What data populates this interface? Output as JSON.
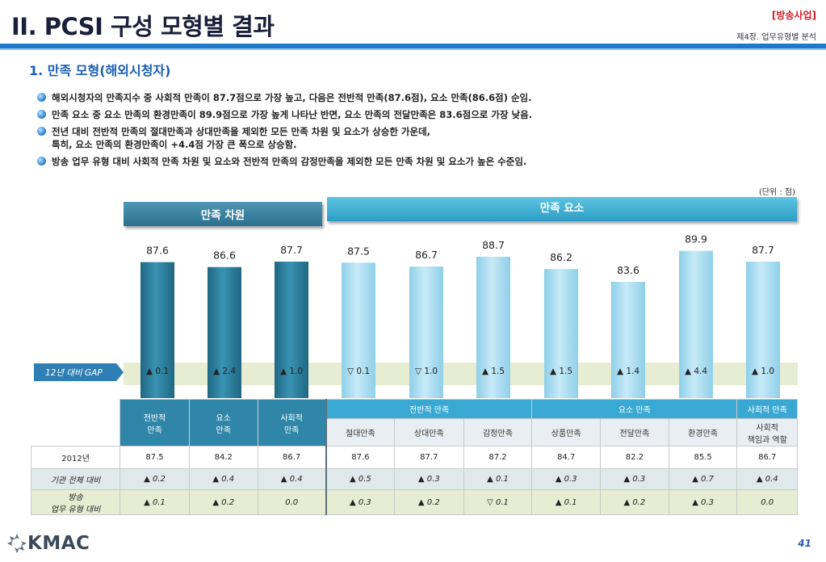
{
  "header": {
    "title": "II. PCSI 구성 모형별 결과",
    "category": "[방송사업]",
    "chapter": "제4장. 업무유형별 분석"
  },
  "section_title": "1. 만족 모형(해외시청자)",
  "bullets": [
    "해외시청자의 만족지수 중 사회적 만족이 87.7점으로 가장 높고, 다음은 전반적 만족(87.6점), 요소 만족(86.6점) 순임.",
    "만족 요소 중 요소 만족의 환경만족이 89.9점으로 가장 높게 나타난 반면, 요소 만족의 전달만족은 83.6점으로 가장 낮음.",
    "전년 대비 전반적 만족의 절대만족과 상대만족을 제외한 모든 만족 차원 및 요소가 상승한 가운데,",
    "특히, 요소 만족의 환경만족이 +4.4점 가장 큰 폭으로 상승함.",
    "방송 업무 유형 대비 사회적 만족 차원 및 요소와 전반적 만족의 감정만족을 제외한 모든 만족 차원 및 요소가 높은 수준임."
  ],
  "unit_note": "(단위 : 점)",
  "banners": {
    "dimension": "만족 차원",
    "element": "만족 요소"
  },
  "chart_data": {
    "type": "bar",
    "categories": [
      "전반적 만족",
      "요소 만족",
      "사회적 만족",
      "절대만족",
      "상대만족",
      "감정만족",
      "상품만족",
      "전달만족",
      "환경만족",
      "사회적 책임과 역할"
    ],
    "values": [
      87.6,
      86.6,
      87.7,
      87.5,
      86.7,
      88.7,
      86.2,
      83.6,
      89.9,
      87.7
    ],
    "value_labels": [
      "87.6",
      "86.6",
      "87.7",
      "87.5",
      "86.7",
      "88.7",
      "86.2",
      "83.6",
      "89.9",
      "87.7"
    ],
    "groups": [
      "dimension",
      "dimension",
      "dimension",
      "element",
      "element",
      "element",
      "element",
      "element",
      "element",
      "element"
    ],
    "colors": {
      "dimension": "#2a7d9b",
      "element": "#a9dcef"
    }
  },
  "gap": {
    "label": "12년 대비 GAP",
    "values": [
      "▲ 0.1",
      "▲ 2.4",
      "▲ 1.0",
      "▽ 0.1",
      "▽ 1.0",
      "▲ 1.5",
      "▲ 1.5",
      "▲ 1.4",
      "▲ 4.4",
      "▲ 1.0"
    ]
  },
  "table": {
    "dim_headers": [
      "전반적\n만족",
      "요소\n만족",
      "사회적\n만족"
    ],
    "group_headers": [
      "전반적 만족",
      "요소 만족",
      "사회적 만족"
    ],
    "sub_headers": [
      "절대만족",
      "상대만족",
      "감정만족",
      "상품만족",
      "전달만족",
      "환경만족",
      "사회적\n책임과 역할"
    ],
    "rows": [
      {
        "label": "2012년",
        "values": [
          "87.5",
          "84.2",
          "86.7",
          "87.6",
          "87.7",
          "87.2",
          "84.7",
          "82.2",
          "85.5",
          "86.7"
        ]
      },
      {
        "label": "기관 전체 대비",
        "values": [
          "▲ 0.2",
          "▲ 0.4",
          "▲ 0.4",
          "▲ 0.5",
          "▲ 0.3",
          "▲ 0.1",
          "▲ 0.3",
          "▲ 0.3",
          "▲ 0.7",
          "▲ 0.4"
        ]
      },
      {
        "label": "방송\n업무 유형 대비",
        "values": [
          "▲ 0.1",
          "▲ 0.2",
          "0.0",
          "▲ 0.3",
          "▲ 0.2",
          "▽ 0.1",
          "▲ 0.1",
          "▲ 0.2",
          "▲ 0.3",
          "0.0"
        ]
      }
    ]
  },
  "footer": {
    "logo": "KMAC",
    "page": "41"
  }
}
